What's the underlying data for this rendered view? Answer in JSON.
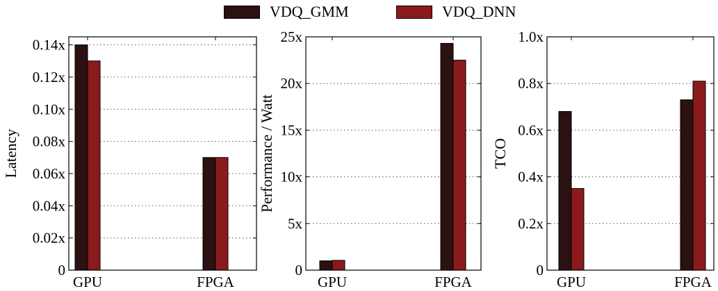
{
  "legend": {
    "items": [
      {
        "label": "VDQ_GMM",
        "color": "#2b1112"
      },
      {
        "label": "VDQ_DNN",
        "color": "#8b1a1d"
      }
    ]
  },
  "chart_data": [
    {
      "type": "bar",
      "title": "",
      "xlabel": "",
      "ylabel": "Latency",
      "categories": [
        "GPU",
        "FPGA"
      ],
      "series": [
        {
          "name": "VDQ_GMM",
          "color": "#2b1112",
          "values": [
            0.14,
            0.07
          ]
        },
        {
          "name": "VDQ_DNN",
          "color": "#8b1a1d",
          "values": [
            0.13,
            0.07
          ]
        }
      ],
      "ylim": [
        0,
        0.145
      ],
      "yticks": [
        0,
        0.02,
        0.04,
        0.06,
        0.08,
        0.1,
        0.12,
        0.14
      ],
      "ytick_labels": [
        "0",
        "0.02x",
        "0.04x",
        "0.06x",
        "0.08x",
        "0.10x",
        "0.12x",
        "0.14x"
      ],
      "grid": "horizontal-dotted"
    },
    {
      "type": "bar",
      "title": "",
      "xlabel": "",
      "ylabel": "Performance / Watt",
      "categories": [
        "GPU",
        "FPGA"
      ],
      "series": [
        {
          "name": "VDQ_GMM",
          "color": "#2b1112",
          "values": [
            1.0,
            24.3
          ]
        },
        {
          "name": "VDQ_DNN",
          "color": "#8b1a1d",
          "values": [
            1.05,
            22.5
          ]
        }
      ],
      "ylim": [
        0,
        25
      ],
      "yticks": [
        0,
        5,
        10,
        15,
        20,
        25
      ],
      "ytick_labels": [
        "0",
        "5x",
        "10x",
        "15x",
        "20x",
        "25x"
      ],
      "grid": "horizontal-dotted"
    },
    {
      "type": "bar",
      "title": "",
      "xlabel": "",
      "ylabel": "TCO",
      "categories": [
        "GPU",
        "FPGA"
      ],
      "series": [
        {
          "name": "VDQ_GMM",
          "color": "#2b1112",
          "values": [
            0.68,
            0.73
          ]
        },
        {
          "name": "VDQ_DNN",
          "color": "#8b1a1d",
          "values": [
            0.35,
            0.81
          ]
        }
      ],
      "ylim": [
        0,
        1.0
      ],
      "yticks": [
        0,
        0.2,
        0.4,
        0.6,
        0.8,
        1.0
      ],
      "ytick_labels": [
        "0",
        "0.2x",
        "0.4x",
        "0.6x",
        "0.8x",
        "1.0x"
      ],
      "grid": "horizontal-dotted"
    }
  ]
}
